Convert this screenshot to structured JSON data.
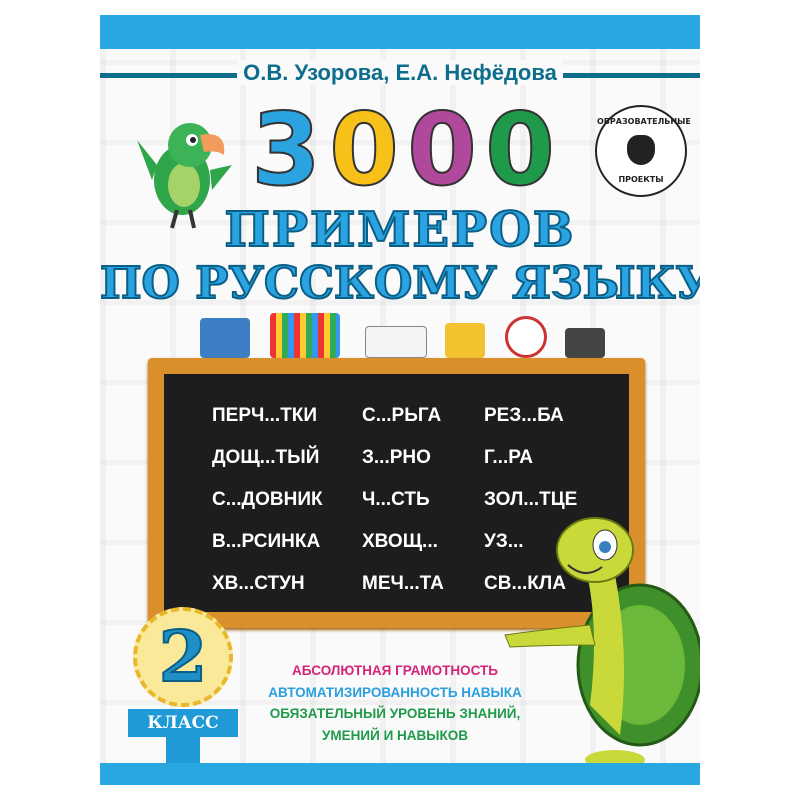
{
  "authors": "О.В. Узорова, Е.А. Нефёдова",
  "number_digits": [
    {
      "char": "3",
      "color": "#2aa3e0"
    },
    {
      "char": "0",
      "color": "#f7c11a"
    },
    {
      "char": "0",
      "color": "#b0489b"
    },
    {
      "char": "0",
      "color": "#1f9a4a"
    }
  ],
  "title_line1": "ПРИМЕРОВ",
  "title_line2": "ПО РУССКОМУ ЯЗЫКУ",
  "publisher_logo": {
    "top_text": "ОБРАЗОВАТЕЛЬНЫЕ",
    "bottom_text": "ПРОЕКТЫ"
  },
  "chalkboard_words": [
    "ПЕРЧ...ТКИ",
    "С...РЬГА",
    "РЕЗ...БА",
    "ДОЩ...ТЫЙ",
    "З...РНО",
    "Г...РА",
    "С...ДОВНИК",
    "Ч...СТЬ",
    "ЗОЛ...ТЦЕ",
    "В...РСИНКА",
    "ХВОЩ...",
    "УЗ...",
    "ХВ...СТУН",
    "МЕЧ...ТА",
    "СВ...КЛА"
  ],
  "grade_badge": {
    "number": "2",
    "label": "КЛАСС"
  },
  "features": [
    {
      "text": "АБСОЛЮТНАЯ ГРАМОТНОСТЬ",
      "color": "#d4237a"
    },
    {
      "text": "АВТОМАТИЗИРОВАННОСТЬ НАВЫКА",
      "color": "#2a9ede"
    },
    {
      "text": "ОБЯЗАТЕЛЬНЫЙ УРОВЕНЬ ЗНАНИЙ,",
      "color": "#1f9a4a"
    },
    {
      "text": "УМЕНИЙ И НАВЫКОВ",
      "color": "#1f9a4a"
    }
  ],
  "colors": {
    "brand_blue": "#29a7e1",
    "dark_teal": "#0d6d8c",
    "board": "#1d1d1d",
    "frame": "#d98f2b"
  }
}
